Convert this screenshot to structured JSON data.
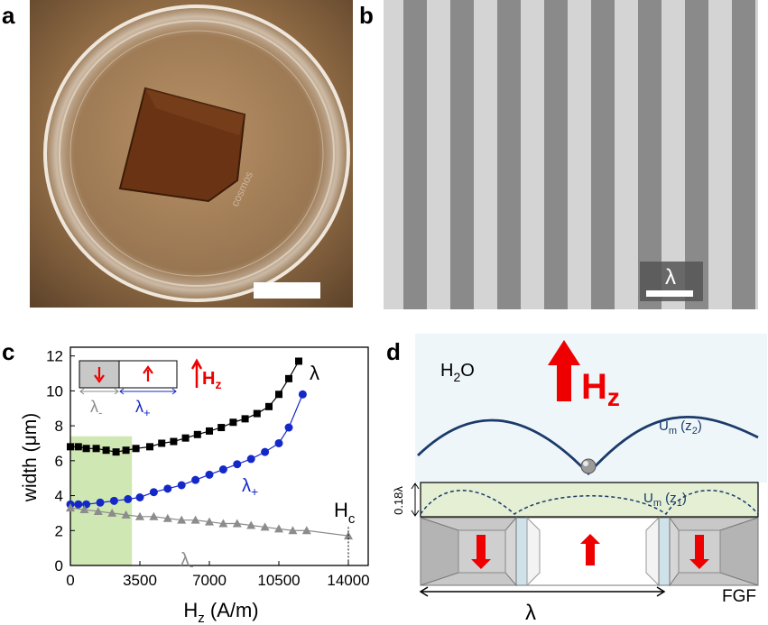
{
  "panels": {
    "a": {
      "letter": "a"
    },
    "b": {
      "letter": "b",
      "scale_label": "λ"
    },
    "c": {
      "letter": "c"
    },
    "d": {
      "letter": "d"
    }
  },
  "chart_data": {
    "type": "scatter",
    "xlabel": "H",
    "xlabel_sub": "z",
    "xlabel_unit": " (A/m)",
    "ylabel": "width (μm)",
    "xlim": [
      0,
      15000
    ],
    "ylim": [
      0,
      12.5
    ],
    "xticks": [
      0,
      3500,
      7000,
      10500,
      14000
    ],
    "yticks": [
      0,
      2,
      4,
      6,
      8,
      10,
      12
    ],
    "shaded_region": {
      "from": 0,
      "to": 3100,
      "color": "#cfe8b3"
    },
    "hc": {
      "label": "H",
      "sub": "c",
      "x": 14000
    },
    "series": [
      {
        "name": "λ",
        "color": "#000000",
        "marker": "square",
        "x": [
          0,
          400,
          800,
          1300,
          1800,
          2300,
          2800,
          3300,
          4000,
          4600,
          5200,
          5800,
          6400,
          7000,
          7600,
          8200,
          8800,
          9400,
          10000,
          10500,
          11000,
          11500
        ],
        "y": [
          6.8,
          6.8,
          6.7,
          6.7,
          6.6,
          6.5,
          6.6,
          6.7,
          6.8,
          7.0,
          7.1,
          7.3,
          7.5,
          7.7,
          7.9,
          8.2,
          8.4,
          8.7,
          9.1,
          9.8,
          10.7,
          11.7
        ]
      },
      {
        "name": "λ+",
        "color": "#1428c8",
        "marker": "circle",
        "x": [
          0,
          400,
          800,
          1500,
          2200,
          2900,
          3500,
          4200,
          4900,
          5600,
          6300,
          7000,
          7700,
          8400,
          9100,
          9800,
          10500,
          11000,
          11700
        ],
        "y": [
          3.5,
          3.5,
          3.5,
          3.6,
          3.7,
          3.8,
          3.9,
          4.2,
          4.4,
          4.6,
          4.9,
          5.2,
          5.5,
          5.8,
          6.1,
          6.5,
          7.0,
          7.9,
          9.8
        ]
      },
      {
        "name": "λ-",
        "color": "#8c8c8c",
        "marker": "triangle",
        "x": [
          0,
          700,
          1400,
          2100,
          2800,
          3500,
          4200,
          4900,
          5600,
          6300,
          7000,
          7700,
          8400,
          9100,
          9800,
          10500,
          11200,
          11900,
          14000
        ],
        "y": [
          3.3,
          3.2,
          3.1,
          3.0,
          2.9,
          2.8,
          2.8,
          2.7,
          2.6,
          2.6,
          2.5,
          2.4,
          2.4,
          2.3,
          2.2,
          2.1,
          2.0,
          2.0,
          1.7
        ]
      }
    ],
    "labels": {
      "lambda": "λ",
      "lambda_plus": "λ",
      "plus_sub": "+",
      "lambda_minus": "λ",
      "minus_sub": "-"
    },
    "inset": {
      "hz_label": "H",
      "hz_sub": "z",
      "lambda_minus": "λ",
      "minus_sub": "-",
      "lambda_plus": "λ",
      "plus_sub": "+"
    }
  },
  "diagram_d": {
    "water": "H",
    "water_sub": "2",
    "water_tail": "O",
    "hz": "H",
    "hz_sub": "z",
    "um2": "U",
    "um2_sub": "m",
    "um2_arg": " (z",
    "um2_arg_sub": "2",
    "um2_close": ")",
    "um1": "U",
    "um1_sub": "m",
    "um1_arg": " (z",
    "um1_arg_sub": "1",
    "um1_close": ")",
    "height_label": "0.18λ",
    "period_label": "λ",
    "fgf_label": "FGF"
  }
}
